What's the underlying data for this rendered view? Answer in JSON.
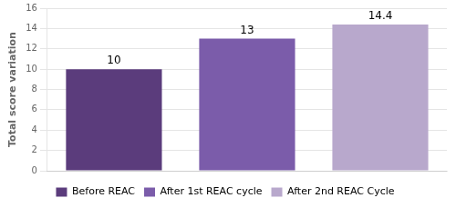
{
  "chart_data": {
    "type": "bar",
    "ylabel": "Total score variation",
    "categories": [
      "Before REAC",
      "After 1st REAC cycle",
      "After 2nd REAC Cycle"
    ],
    "values": [
      10,
      13,
      14.4
    ],
    "colors": [
      "#5b3c7c",
      "#7b5caa",
      "#b8a8cc"
    ],
    "ylim": [
      0,
      16
    ],
    "yticks": [
      0,
      2,
      4,
      6,
      8,
      10,
      12,
      14,
      16
    ],
    "grid": true,
    "legend": "bottom",
    "data_labels": true,
    "tick_labels": "y"
  }
}
